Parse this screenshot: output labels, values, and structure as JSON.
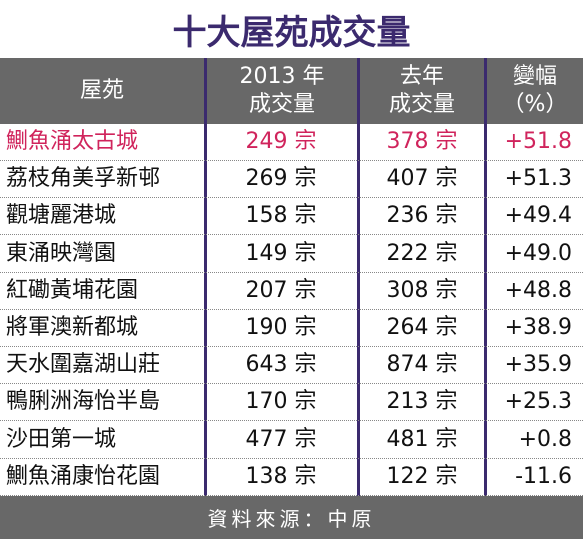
{
  "chart_data": {
    "type": "table",
    "title": "十大屋苑成交量",
    "columns": {
      "estate": "屋苑",
      "y2013_line1": "2013 年",
      "y2013_line2": "成交量",
      "last_line1": "去年",
      "last_line2": "成交量",
      "change_line1": "變幅",
      "change_line2": "（%）"
    },
    "unit": "宗",
    "rows": [
      {
        "estate": "鰂魚涌太古城",
        "y2013": 249,
        "last_year": 378,
        "change": "+51.8",
        "highlight": true
      },
      {
        "estate": "荔枝角美孚新邨",
        "y2013": 269,
        "last_year": 407,
        "change": "+51.3"
      },
      {
        "estate": "觀塘麗港城",
        "y2013": 158,
        "last_year": 236,
        "change": "+49.4"
      },
      {
        "estate": "東涌映灣園",
        "y2013": 149,
        "last_year": 222,
        "change": "+49.0"
      },
      {
        "estate": "紅磡黃埔花園",
        "y2013": 207,
        "last_year": 308,
        "change": "+48.8"
      },
      {
        "estate": "將軍澳新都城",
        "y2013": 190,
        "last_year": 264,
        "change": "+38.9"
      },
      {
        "estate": "天水圍嘉湖山莊",
        "y2013": 643,
        "last_year": 874,
        "change": "+35.9"
      },
      {
        "estate": "鴨脷洲海怡半島",
        "y2013": 170,
        "last_year": 213,
        "change": "+25.3"
      },
      {
        "estate": "沙田第一城",
        "y2013": 477,
        "last_year": 481,
        "change": "+0.8"
      },
      {
        "estate": "鰂魚涌康怡花園",
        "y2013": 138,
        "last_year": 122,
        "change": "-11.6"
      }
    ],
    "source": "資料來源：中原"
  },
  "colors": {
    "title": "#3b2a6e",
    "header_bg": "#686868",
    "highlight": "#d0245c",
    "divider": "#3b2a6e"
  }
}
